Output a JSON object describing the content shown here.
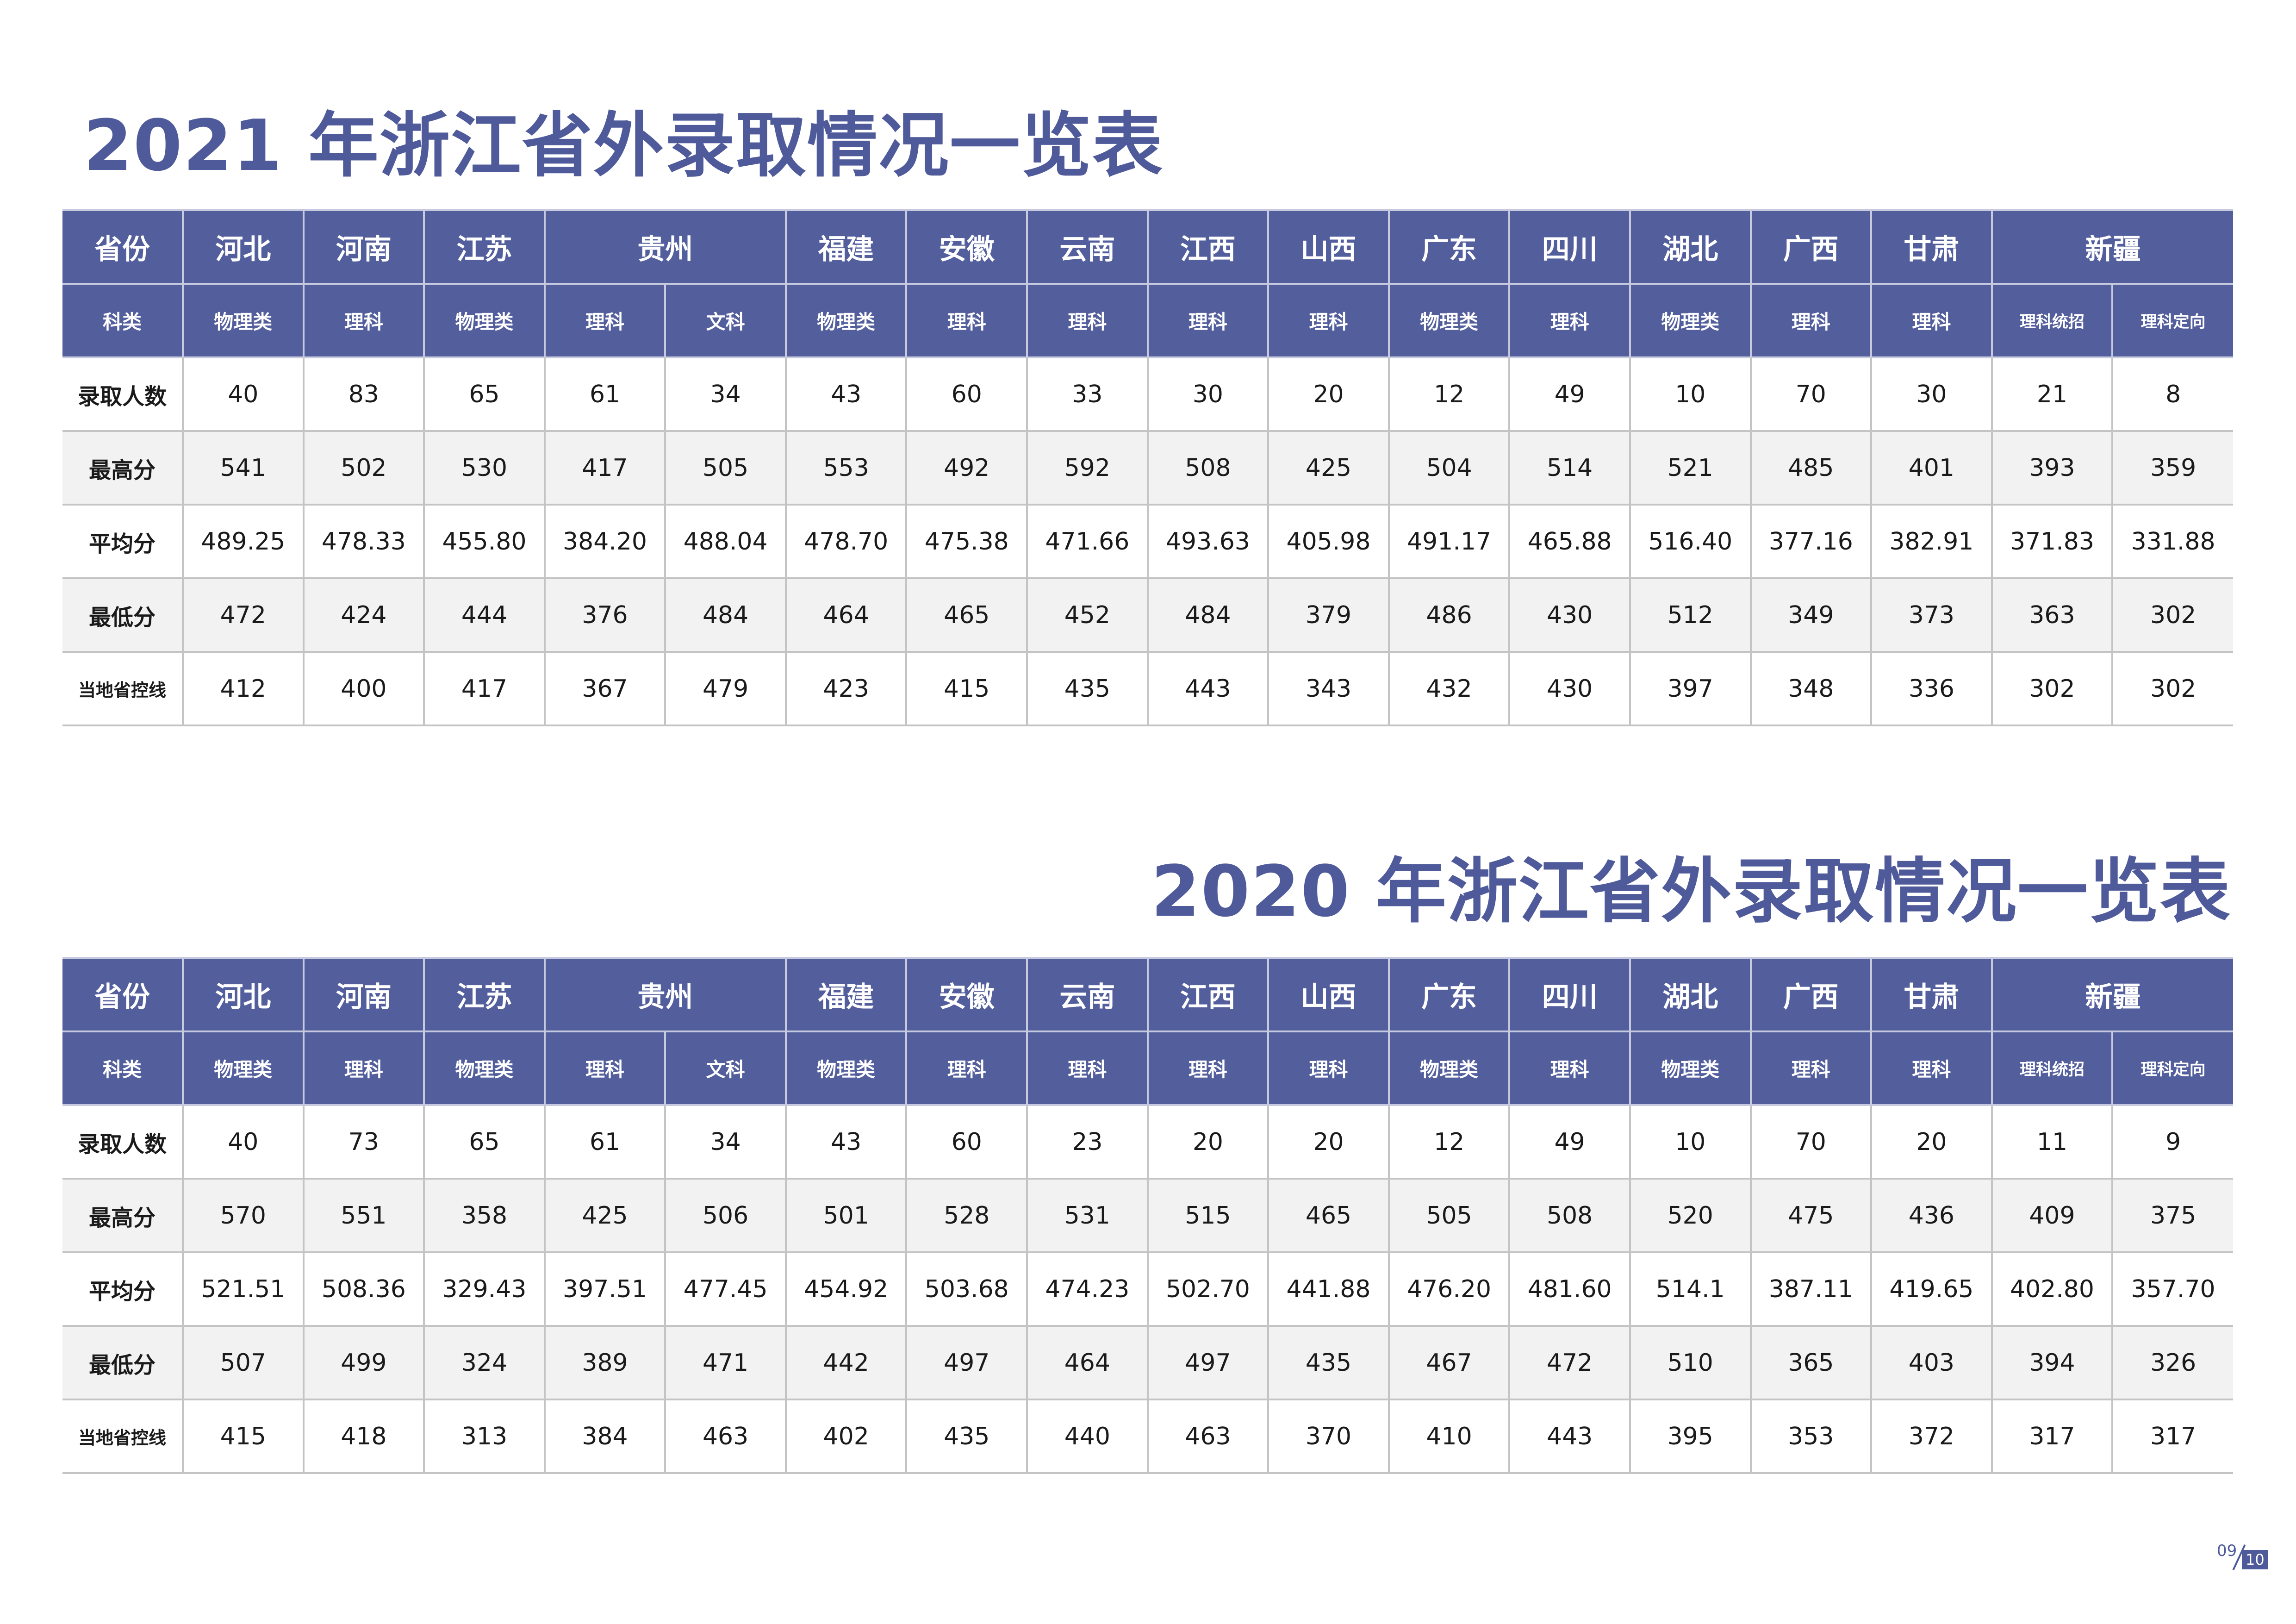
{
  "tables": [
    {
      "title": "2021 年浙江省外录取情况一览表",
      "header_label": "省份",
      "subject_label": "科类",
      "provinces": [
        "河北",
        "河南",
        "江苏",
        "贵州",
        "福建",
        "安徽",
        "云南",
        "江西",
        "山西",
        "广东",
        "四川",
        "湖北",
        "广西",
        "甘肃",
        "新疆"
      ],
      "subjects": [
        "物理类",
        "理科",
        "物理类",
        "理科",
        "文科",
        "物理类",
        "理科",
        "理科",
        "理科",
        "理科",
        "物理类",
        "理科",
        "物理类",
        "理科",
        "理科",
        "理科统招",
        "理科定向"
      ],
      "rows": [
        {
          "label": "录取人数",
          "values": [
            "40",
            "83",
            "65",
            "61",
            "34",
            "43",
            "60",
            "33",
            "30",
            "20",
            "12",
            "49",
            "10",
            "70",
            "30",
            "21",
            "8"
          ]
        },
        {
          "label": "最高分",
          "values": [
            "541",
            "502",
            "530",
            "417",
            "505",
            "553",
            "492",
            "592",
            "508",
            "425",
            "504",
            "514",
            "521",
            "485",
            "401",
            "393",
            "359"
          ]
        },
        {
          "label": "平均分",
          "values": [
            "489.25",
            "478.33",
            "455.80",
            "384.20",
            "488.04",
            "478.70",
            "475.38",
            "471.66",
            "493.63",
            "405.98",
            "491.17",
            "465.88",
            "516.40",
            "377.16",
            "382.91",
            "371.83",
            "331.88"
          ]
        },
        {
          "label": "最低分",
          "values": [
            "472",
            "424",
            "444",
            "376",
            "484",
            "464",
            "465",
            "452",
            "484",
            "379",
            "486",
            "430",
            "512",
            "349",
            "373",
            "363",
            "302"
          ]
        },
        {
          "label": "当地省控线",
          "values": [
            "412",
            "400",
            "417",
            "367",
            "479",
            "423",
            "415",
            "435",
            "443",
            "343",
            "432",
            "430",
            "397",
            "348",
            "336",
            "302",
            "302"
          ]
        }
      ]
    },
    {
      "title": "2020 年浙江省外录取情况一览表",
      "header_label": "省份",
      "subject_label": "科类",
      "provinces": [
        "河北",
        "河南",
        "江苏",
        "贵州",
        "福建",
        "安徽",
        "云南",
        "江西",
        "山西",
        "广东",
        "四川",
        "湖北",
        "广西",
        "甘肃",
        "新疆"
      ],
      "subjects": [
        "物理类",
        "理科",
        "物理类",
        "理科",
        "文科",
        "物理类",
        "理科",
        "理科",
        "理科",
        "理科",
        "物理类",
        "理科",
        "物理类",
        "理科",
        "理科",
        "理科统招",
        "理科定向"
      ],
      "rows": [
        {
          "label": "录取人数",
          "values": [
            "40",
            "73",
            "65",
            "61",
            "34",
            "43",
            "60",
            "23",
            "20",
            "20",
            "12",
            "49",
            "10",
            "70",
            "20",
            "11",
            "9"
          ]
        },
        {
          "label": "最高分",
          "values": [
            "570",
            "551",
            "358",
            "425",
            "506",
            "501",
            "528",
            "531",
            "515",
            "465",
            "505",
            "508",
            "520",
            "475",
            "436",
            "409",
            "375"
          ]
        },
        {
          "label": "平均分",
          "values": [
            "521.51",
            "508.36",
            "329.43",
            "397.51",
            "477.45",
            "454.92",
            "503.68",
            "474.23",
            "502.70",
            "441.88",
            "476.20",
            "481.60",
            "514.1",
            "387.11",
            "419.65",
            "402.80",
            "357.70"
          ]
        },
        {
          "label": "最低分",
          "values": [
            "507",
            "499",
            "324",
            "389",
            "471",
            "442",
            "497",
            "464",
            "497",
            "435",
            "467",
            "472",
            "510",
            "365",
            "403",
            "394",
            "326"
          ]
        },
        {
          "label": "当地省控线",
          "values": [
            "415",
            "418",
            "313",
            "384",
            "463",
            "402",
            "435",
            "440",
            "463",
            "370",
            "410",
            "443",
            "395",
            "353",
            "372",
            "317",
            "317"
          ]
        }
      ]
    }
  ],
  "page": {
    "current": "09",
    "total": "10"
  },
  "colors": {
    "accent": "#535e9d",
    "title": "#4f5a9a",
    "row_alt": "#f2f2f2",
    "grid": "#c4c4c4"
  }
}
